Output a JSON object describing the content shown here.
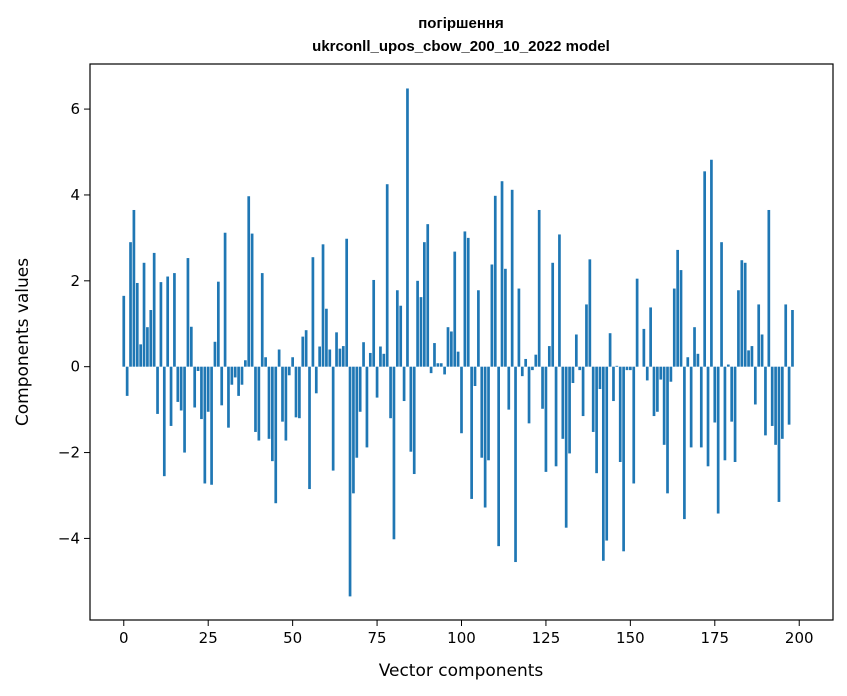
{
  "chart_data": {
    "type": "bar",
    "title_line1": "погіршення",
    "title_line2": "ukrconll_upos_cbow_200_10_2022 model",
    "xlabel": "Vector components",
    "ylabel": "Components values",
    "xlim": [
      -10,
      210
    ],
    "ylim": [
      -5.9,
      7.05
    ],
    "x_ticks": [
      0,
      25,
      50,
      75,
      100,
      125,
      150,
      175,
      200
    ],
    "y_ticks": [
      -4,
      -2,
      0,
      2,
      4,
      6
    ],
    "bar_color": "#1f77b4",
    "grid": false,
    "legend": "none",
    "values": [
      1.65,
      -0.68,
      2.9,
      3.65,
      1.95,
      0.52,
      2.42,
      0.92,
      1.32,
      2.65,
      -1.1,
      1.97,
      -2.55,
      2.1,
      -1.38,
      2.18,
      -0.82,
      -1.02,
      -2.0,
      2.53,
      0.93,
      -0.95,
      -0.1,
      -1.22,
      -2.72,
      -1.05,
      -2.75,
      0.58,
      1.98,
      -0.9,
      3.12,
      -1.42,
      -0.42,
      -0.25,
      -0.68,
      -0.42,
      0.15,
      3.97,
      3.1,
      -1.52,
      -1.72,
      2.18,
      0.22,
      -1.68,
      -2.2,
      -3.18,
      0.4,
      -1.28,
      -1.72,
      -0.2,
      0.22,
      -1.18,
      -1.2,
      0.7,
      0.85,
      -2.85,
      2.55,
      -0.62,
      0.47,
      2.85,
      1.35,
      0.4,
      -2.42,
      0.8,
      0.42,
      0.48,
      2.98,
      -5.35,
      -2.95,
      -2.12,
      -1.05,
      0.57,
      -1.88,
      0.32,
      2.02,
      -0.72,
      0.47,
      0.3,
      4.25,
      -1.2,
      -4.02,
      1.78,
      1.42,
      -0.8,
      6.48,
      -1.98,
      -2.5,
      2.0,
      1.62,
      2.9,
      3.32,
      -0.15,
      0.55,
      0.08,
      0.08,
      -0.18,
      0.92,
      0.82,
      2.68,
      0.35,
      -1.55,
      3.15,
      3.0,
      -3.08,
      -0.45,
      1.78,
      -2.12,
      -3.28,
      -2.18,
      2.38,
      3.98,
      -4.18,
      4.32,
      2.28,
      -1.0,
      4.12,
      -4.55,
      1.82,
      -0.22,
      0.18,
      -1.32,
      -0.08,
      0.28,
      3.65,
      -0.98,
      -2.45,
      0.48,
      2.42,
      -2.32,
      3.08,
      -1.68,
      -3.75,
      -2.02,
      -0.38,
      0.75,
      -0.08,
      -1.15,
      1.45,
      2.5,
      -1.52,
      -2.48,
      -0.52,
      -4.52,
      -4.05,
      0.78,
      -0.8,
      0.02,
      -2.22,
      -4.3,
      -0.08,
      -0.08,
      -2.72,
      2.05,
      0.0,
      0.88,
      -0.32,
      1.38,
      -1.15,
      -1.05,
      -0.3,
      -1.82,
      -2.95,
      -0.35,
      1.82,
      2.72,
      2.25,
      -3.55,
      0.22,
      -1.88,
      0.92,
      0.3,
      -1.88,
      4.55,
      -2.32,
      4.82,
      -1.3,
      -3.42,
      2.9,
      -2.18,
      0.05,
      -1.28,
      -2.22,
      1.78,
      2.48,
      2.42,
      0.38,
      0.48,
      -0.88,
      1.45,
      0.75,
      -1.6,
      3.65,
      -1.38,
      -1.82,
      -3.15,
      -1.68,
      1.45,
      -1.35,
      1.32
    ]
  }
}
